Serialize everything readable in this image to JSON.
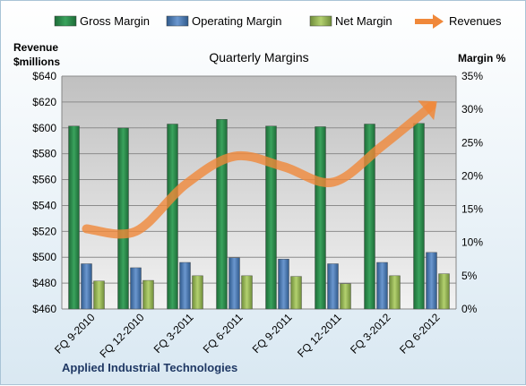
{
  "chart_data": {
    "type": "bar",
    "title": "Quarterly Margins",
    "company": "Applied Industrial Technologies",
    "left_axis_title": [
      "Revenue",
      "$millions"
    ],
    "right_axis_title": "Margin %",
    "categories": [
      "FQ 9-2010",
      "FQ 12-2010",
      "FQ 3-2011",
      "FQ 6-2011",
      "FQ 9-2011",
      "FQ 12-2011",
      "FQ 3-2012",
      "FQ 6-2012"
    ],
    "left_axis": {
      "min": 460,
      "max": 640,
      "step": 20,
      "unit": "$"
    },
    "right_axis": {
      "min": 0,
      "max": 35,
      "step": 5,
      "unit": "%"
    },
    "series": [
      {
        "name": "Gross Margin",
        "type": "bar",
        "axis": "right",
        "color": "#2a8a4a",
        "values": [
          27.5,
          27.2,
          27.8,
          28.5,
          27.5,
          27.4,
          27.8,
          27.9
        ]
      },
      {
        "name": "Operating Margin",
        "type": "bar",
        "axis": "right",
        "color": "#4f81bd",
        "values": [
          6.8,
          6.2,
          7.0,
          7.7,
          7.5,
          6.8,
          7.0,
          8.5
        ]
      },
      {
        "name": "Net Margin",
        "type": "bar",
        "axis": "right",
        "color": "#9bbb59",
        "values": [
          4.2,
          4.3,
          5.0,
          5.0,
          4.9,
          3.8,
          5.0,
          5.3
        ]
      },
      {
        "name": "Revenues",
        "type": "line",
        "axis": "left",
        "color": "#f0883a",
        "values": [
          522,
          520,
          556,
          578,
          570,
          558,
          586,
          617
        ]
      }
    ],
    "legend_position": "top",
    "grid": true
  }
}
